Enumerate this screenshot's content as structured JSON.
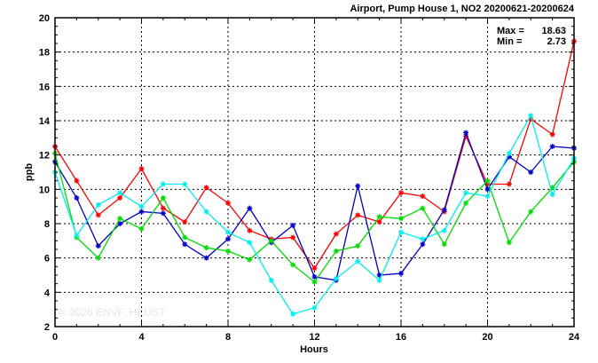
{
  "chart_data": {
    "type": "line",
    "title": "Airport, Pump House 1, NO2 20200621-20200624",
    "xlabel": "Hours",
    "ylabel": "ppb",
    "xlim": [
      0,
      24
    ],
    "ylim": [
      2,
      20
    ],
    "x_ticks": [
      0,
      4,
      8,
      12,
      16,
      20,
      24
    ],
    "y_ticks": [
      2,
      4,
      6,
      8,
      10,
      12,
      14,
      16,
      18,
      20
    ],
    "grid": true,
    "stats": {
      "max_label": "Max =",
      "max_value": "18.63",
      "min_label": "Min =",
      "min_value": "2.73"
    },
    "watermark": "© 2026 ENVF, HKUST",
    "x": [
      0,
      1,
      2,
      3,
      4,
      5,
      6,
      7,
      8,
      9,
      10,
      11,
      12,
      13,
      14,
      15,
      16,
      17,
      18,
      19,
      20,
      21,
      22,
      23,
      24
    ],
    "series": [
      {
        "color": "#ff0000",
        "values": [
          12.5,
          10.5,
          8.5,
          9.5,
          11.2,
          8.9,
          8.1,
          10.1,
          9.2,
          7.6,
          7.1,
          7.2,
          5.4,
          7.4,
          8.5,
          8.1,
          9.8,
          9.6,
          8.7,
          13.1,
          10.3,
          10.3,
          14.1,
          13.2,
          18.63
        ]
      },
      {
        "color": "#0000cc",
        "values": [
          11.6,
          9.5,
          6.7,
          8.0,
          8.7,
          8.6,
          6.8,
          6.0,
          7.1,
          8.9,
          6.9,
          7.9,
          4.9,
          4.7,
          10.2,
          5.0,
          5.1,
          6.8,
          8.8,
          13.3,
          10.0,
          11.9,
          11.0,
          12.5,
          12.4
        ]
      },
      {
        "color": "#00dd00",
        "values": [
          12.1,
          7.2,
          6.0,
          8.3,
          7.7,
          9.5,
          7.2,
          6.6,
          6.4,
          5.9,
          7.0,
          5.6,
          4.6,
          6.4,
          6.7,
          8.4,
          8.3,
          8.9,
          6.8,
          9.2,
          10.5,
          6.9,
          8.7,
          10.1,
          11.6
        ]
      },
      {
        "color": "#00eeee",
        "values": [
          11.0,
          7.3,
          9.1,
          9.8,
          9.0,
          10.3,
          10.3,
          8.7,
          7.5,
          6.9,
          4.7,
          2.73,
          3.1,
          4.8,
          5.8,
          4.7,
          7.5,
          7.1,
          7.6,
          9.8,
          9.6,
          12.1,
          14.3,
          9.7,
          11.8
        ]
      }
    ]
  }
}
